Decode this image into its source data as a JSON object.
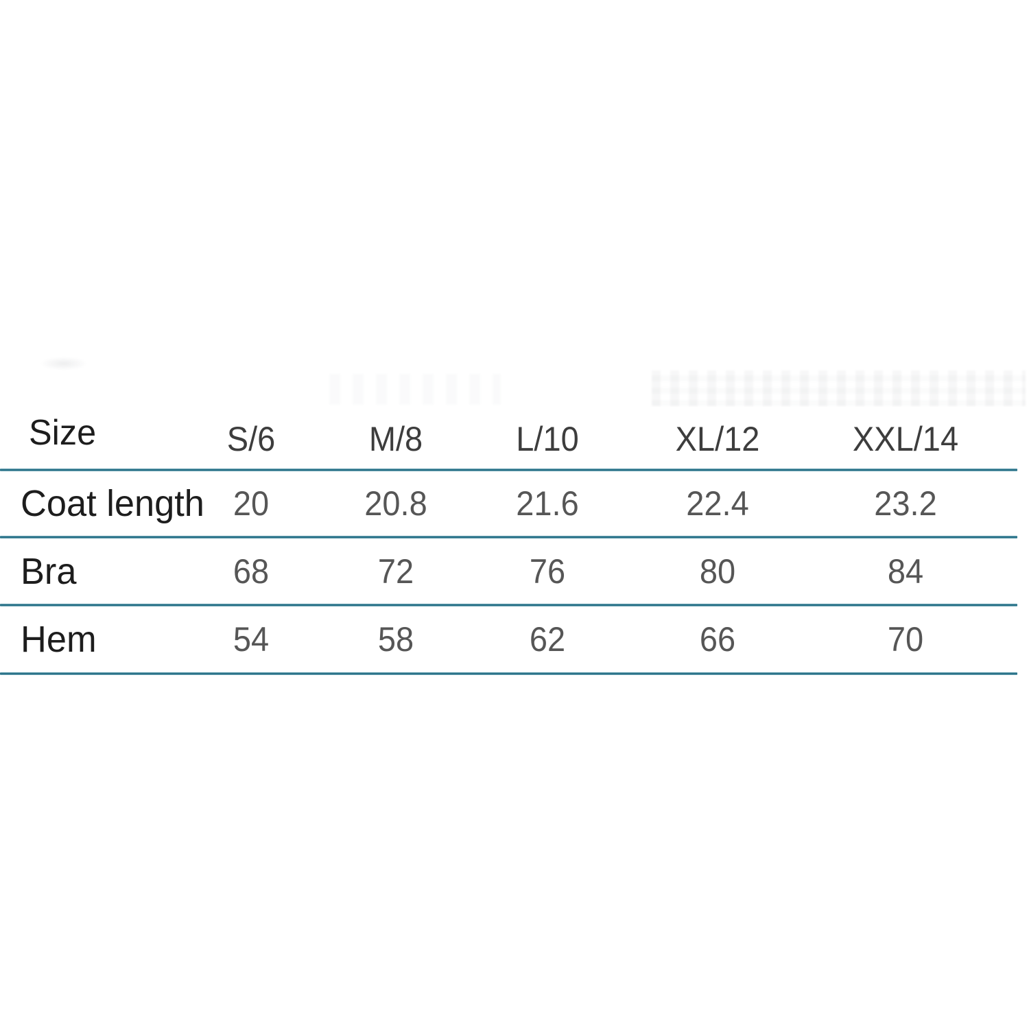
{
  "table": {
    "divider_color": "#2c7389",
    "header": {
      "label": "Size",
      "columns": [
        "S/6",
        "M/8",
        "L/10",
        "XL/12",
        "XXL/14"
      ]
    },
    "rows": [
      {
        "label": "Coat length",
        "values": [
          "20",
          "20.8",
          "21.6",
          "22.4",
          "23.2"
        ]
      },
      {
        "label": "Bra",
        "values": [
          "68",
          "72",
          "76",
          "80",
          "84"
        ]
      },
      {
        "label": "Hem",
        "values": [
          "54",
          "58",
          "62",
          "66",
          "70"
        ]
      }
    ]
  }
}
